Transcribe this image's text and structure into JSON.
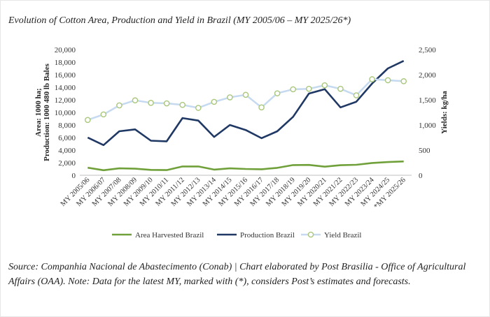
{
  "title": "Evolution of Cotton Area, Production and Yield in Brazil (MY 2005/06 – MY 2025/26*)",
  "source_note": "Source: Companhia Nacional de Abastecimento (Conab) | Chart elaborated by Post Brasilia - Office of Agricultural Affairs (OAA). Note: Data for the latest MY, marked with (*), considers Post’s estimates and forecasts.",
  "chart_data": {
    "type": "line",
    "title": "Evolution of Cotton Area, Production and Yield in Brazil (MY 2005/06 – MY 2025/26*)",
    "categories": [
      "MY 2005/06",
      "MY 2006/07",
      "MY 2007/08",
      "MY 2008/09",
      "MY 2009/10",
      "MY 2010/11",
      "MY 2011/12",
      "MY 2012/13",
      "MY 2013/14",
      "MY 2014/15",
      "MY 2015/16",
      "MY 2016/17",
      "MY 2017/18",
      "MY 2018/19",
      "MY 2019/20",
      "MY 2020/21",
      "MY 2021/22",
      "MY 2022/23",
      "MY 2023/24",
      "MY 2024/25",
      "*MY 2025/26"
    ],
    "left_axis": {
      "label_line1": "Area: 1000 ha;",
      "label_line2": "Production: 1000 480 lb Bales",
      "ylim": [
        0,
        20000
      ],
      "ticks": [
        "0",
        "2,000",
        "4,000",
        "6,000",
        "8,000",
        "10,000",
        "12,000",
        "14,000",
        "16,000",
        "18,000",
        "20,000"
      ]
    },
    "right_axis": {
      "label": "Yields: kg/ha",
      "ylim": [
        0,
        2500
      ],
      "ticks": [
        "0",
        "500",
        "1,000",
        "1,500",
        "2,000",
        "2,500"
      ]
    },
    "grid": false,
    "legend_position": "bottom",
    "series": [
      {
        "name": "Area Harvested Brazil",
        "axis": "left",
        "color": "#70a03a",
        "values": [
          1200,
          800,
          1100,
          1050,
          850,
          820,
          1400,
          1400,
          900,
          1100,
          1000,
          950,
          1180,
          1620,
          1650,
          1370,
          1600,
          1670,
          1950,
          2100,
          2200
        ]
      },
      {
        "name": "Production Brazil",
        "axis": "left",
        "color": "#1f3864",
        "values": [
          6000,
          4800,
          7000,
          7300,
          5500,
          5400,
          9100,
          8700,
          6100,
          8000,
          7200,
          5900,
          7000,
          9300,
          13000,
          13700,
          10800,
          11700,
          14600,
          17000,
          18200
        ]
      },
      {
        "name": "Yield Brazil",
        "axis": "right",
        "color": "#c5d9f0",
        "marker_color": "#a9c77a",
        "values": [
          1100,
          1210,
          1390,
          1490,
          1440,
          1430,
          1400,
          1340,
          1460,
          1550,
          1600,
          1350,
          1630,
          1710,
          1720,
          1790,
          1720,
          1590,
          1910,
          1890,
          1870
        ]
      }
    ]
  }
}
